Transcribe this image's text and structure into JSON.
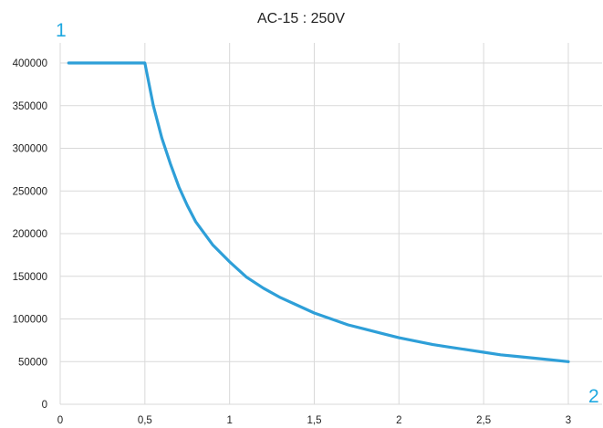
{
  "chart_data": {
    "type": "line",
    "title": "AC-15 : 250V",
    "xlabel": "",
    "ylabel": "",
    "corner_labels": {
      "y_axis_marker": "1",
      "x_axis_marker": "2"
    },
    "xlim": [
      0,
      3
    ],
    "ylim": [
      0,
      400000
    ],
    "x_tick_labels": [
      "0",
      "0,5",
      "1",
      "1,5",
      "2",
      "2,5",
      "3"
    ],
    "y_tick_labels": [
      "0",
      "50000",
      "100000",
      "150000",
      "200000",
      "250000",
      "300000",
      "350000",
      "400000"
    ],
    "grid": "vertical and horizontal",
    "colors": {
      "line": "#2E9FD8",
      "grid": "#D9D9D9",
      "corner_labels": "#1FA8E0"
    },
    "series": [
      {
        "x": [
          0.05,
          0.1,
          0.2,
          0.3,
          0.4,
          0.5,
          0.55,
          0.6,
          0.65,
          0.7,
          0.75,
          0.8,
          0.9,
          1.0,
          1.1,
          1.2,
          1.3,
          1.4,
          1.5,
          1.6,
          1.7,
          1.8,
          1.9,
          2.0,
          2.1,
          2.2,
          2.3,
          2.4,
          2.5,
          2.6,
          2.7,
          2.8,
          2.9,
          3.0
        ],
        "y": [
          400000,
          400000,
          400000,
          400000,
          400000,
          400000,
          350000,
          312000,
          282000,
          255000,
          233000,
          214000,
          187000,
          167000,
          149000,
          136000,
          125000,
          116000,
          107000,
          100000,
          93000,
          88000,
          83000,
          78000,
          74000,
          70000,
          67000,
          64000,
          61000,
          58000,
          56000,
          54000,
          52000,
          50000
        ]
      }
    ]
  }
}
